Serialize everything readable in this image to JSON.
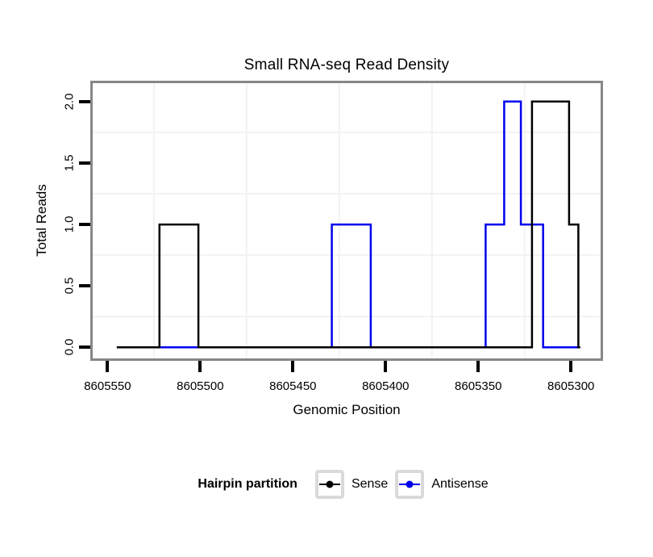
{
  "chart_data": {
    "type": "line",
    "title": "Small RNA-seq Read Density",
    "xlabel": "Genomic Position",
    "ylabel": "Total Reads",
    "x_axis": {
      "reversed": true,
      "lim": [
        8605558,
        8605284
      ],
      "ticks": [
        8605550,
        8605500,
        8605450,
        8605400,
        8605350,
        8605300
      ],
      "tick_labels": [
        "8605550",
        "8605500",
        "8605450",
        "8605400",
        "8605350",
        "8605300"
      ],
      "grid_lines": [
        8605525,
        8605475,
        8605425,
        8605375,
        8605325
      ]
    },
    "y_axis": {
      "lim": [
        -0.09,
        2.15
      ],
      "ticks": [
        0.0,
        0.5,
        1.0,
        1.5,
        2.0
      ],
      "tick_labels": [
        "0.0",
        "0.5",
        "1.0",
        "1.5",
        "2.0"
      ],
      "grid_lines": [
        0.25,
        0.75,
        1.25,
        1.75
      ]
    },
    "series": [
      {
        "name": "Antisense",
        "color": "#0000ee",
        "points": [
          [
            8605545,
            0
          ],
          [
            8605429,
            0
          ],
          [
            8605429,
            1
          ],
          [
            8605408,
            1
          ],
          [
            8605408,
            0
          ],
          [
            8605346,
            0
          ],
          [
            8605346,
            1
          ],
          [
            8605336,
            1
          ],
          [
            8605336,
            2
          ],
          [
            8605327,
            2
          ],
          [
            8605327,
            1
          ],
          [
            8605315,
            1
          ],
          [
            8605315,
            0
          ],
          [
            8605295,
            0
          ]
        ]
      },
      {
        "name": "Sense",
        "color": "#000000",
        "points": [
          [
            8605545,
            0
          ],
          [
            8605522,
            0
          ],
          [
            8605522,
            1
          ],
          [
            8605501,
            1
          ],
          [
            8605501,
            0
          ],
          [
            8605321,
            0
          ],
          [
            8605321,
            2
          ],
          [
            8605301,
            2
          ],
          [
            8605301,
            1
          ],
          [
            8605296,
            1
          ],
          [
            8605296,
            0
          ],
          [
            8605295,
            0
          ]
        ]
      }
    ],
    "legend_position": "bottom"
  },
  "legend": {
    "title": "Hairpin partition",
    "items": [
      {
        "label": "Sense",
        "color": "#000000"
      },
      {
        "label": "Antisense",
        "color": "#0000ee"
      }
    ]
  },
  "colors": {
    "grid": "#f2f2f2",
    "panel_border": "#878787",
    "tick": "#000000",
    "legend_key_border": "#dadada",
    "background": "#ffffff"
  }
}
